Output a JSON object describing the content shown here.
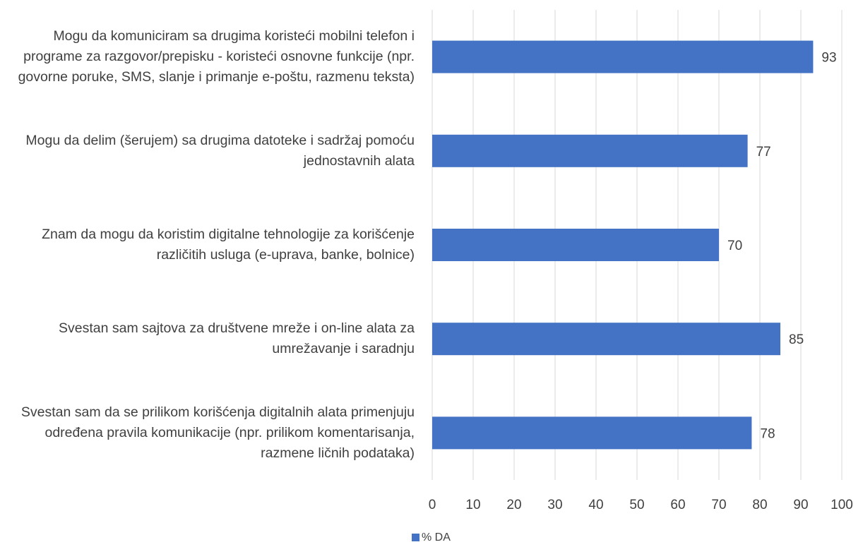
{
  "chart_data": {
    "type": "bar",
    "orientation": "horizontal",
    "categories": [
      "Mogu da komuniciram sa drugima koristeći mobilni telefon i programe za razgovor/prepisku - koristeći osnovne funkcije (npr. govorne poruke, SMS, slanje i primanje e-poštu, razmenu teksta)",
      "Mogu da delim (šerujem) sa drugima datoteke i sadržaj pomoću jednostavnih alata",
      "Znam da mogu da koristim digitalne tehnologije za korišćenje različitih usluga (e-uprava, banke, bolnice)",
      "Svestan sam sajtova za društvene mreže i on-line alata za umrežavanje i saradnju",
      "Svestan sam da se prilikom korišćenja digitalnih alata primenjuju određena pravila komunikacije (npr. prilikom komentarisanja, razmene ličnih podataka)"
    ],
    "series": [
      {
        "name": "% DA",
        "color": "#4472c4",
        "values": [
          93,
          77,
          70,
          85,
          78
        ]
      }
    ],
    "xlim": [
      0,
      100
    ],
    "xticks": [
      0,
      10,
      20,
      30,
      40,
      50,
      60,
      70,
      80,
      90,
      100
    ],
    "grid": true,
    "legend": "bottom"
  }
}
